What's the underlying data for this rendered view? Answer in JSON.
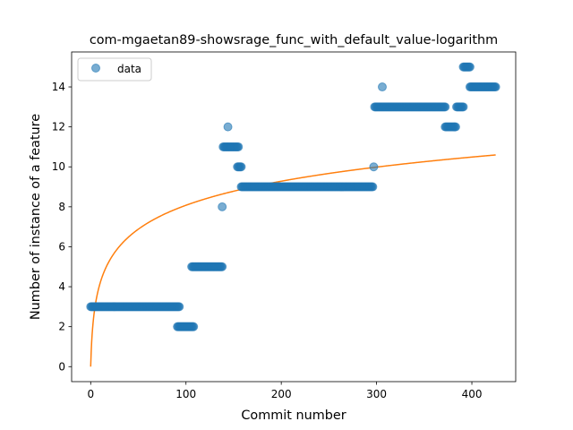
{
  "chart_data": {
    "type": "scatter",
    "title": "com-mgaetan89-showsrage_func_with_default_value-logarithm",
    "xlabel": "Commit number",
    "ylabel": "Number of instance of a feature",
    "xlim": [
      -20,
      446
    ],
    "ylim": [
      -0.75,
      15.75
    ],
    "xticks": [
      0,
      100,
      200,
      300,
      400
    ],
    "yticks": [
      0,
      2,
      4,
      6,
      8,
      10,
      12,
      14
    ],
    "legend": {
      "position": "top-left",
      "entries": [
        "data"
      ]
    },
    "series": [
      {
        "name": "data",
        "kind": "scatter",
        "color": "#1f77b4",
        "segments": [
          {
            "x_start": 0,
            "x_end": 93,
            "y": 3
          },
          {
            "x_start": 91,
            "x_end": 108,
            "y": 2
          },
          {
            "x_start": 106,
            "x_end": 138,
            "y": 5
          },
          {
            "x_start": 138,
            "x_end": 138,
            "y": 8
          },
          {
            "x_start": 139,
            "x_end": 155,
            "y": 11
          },
          {
            "x_start": 144,
            "x_end": 144,
            "y": 12
          },
          {
            "x_start": 154,
            "x_end": 158,
            "y": 10
          },
          {
            "x_start": 158,
            "x_end": 296,
            "y": 9
          },
          {
            "x_start": 297,
            "x_end": 297,
            "y": 10
          },
          {
            "x_start": 298,
            "x_end": 372,
            "y": 13
          },
          {
            "x_start": 306,
            "x_end": 306,
            "y": 14
          },
          {
            "x_start": 372,
            "x_end": 383,
            "y": 12
          },
          {
            "x_start": 384,
            "x_end": 391,
            "y": 13
          },
          {
            "x_start": 391,
            "x_end": 398,
            "y": 15
          },
          {
            "x_start": 398,
            "x_end": 425,
            "y": 14
          }
        ]
      },
      {
        "name": "fit",
        "kind": "line",
        "color": "#ff7f0e",
        "model": "a*ln(x+1)",
        "a": 1.75,
        "x_range": [
          0,
          425
        ]
      }
    ]
  }
}
